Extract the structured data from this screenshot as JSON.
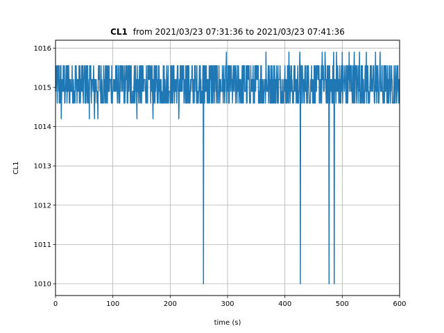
{
  "chart_data": {
    "type": "line",
    "title_bold": "CL1",
    "title_rest": "from 2021/03/23 07:31:36 to 2021/03/23 07:41:36",
    "xlabel": "time (s)",
    "ylabel": "CL1",
    "xlim": [
      0,
      600
    ],
    "ylim": [
      1009.7,
      1016.2
    ],
    "xticks": [
      0,
      100,
      200,
      300,
      400,
      500,
      600
    ],
    "yticks": [
      1010,
      1011,
      1012,
      1013,
      1014,
      1015,
      1016
    ],
    "grid": true,
    "line_color": "#1f77b4",
    "baseline_levels": [
      1014.6,
      1014.9,
      1015.2,
      1015.55
    ],
    "spikes_up": [
      {
        "x": 298,
        "y": 1015.9
      },
      {
        "x": 367,
        "y": 1015.9
      },
      {
        "x": 407,
        "y": 1015.9
      },
      {
        "x": 426,
        "y": 1015.9
      },
      {
        "x": 465,
        "y": 1015.9
      },
      {
        "x": 470,
        "y": 1015.9
      },
      {
        "x": 485,
        "y": 1015.9
      },
      {
        "x": 490,
        "y": 1015.9
      },
      {
        "x": 500,
        "y": 1015.9
      },
      {
        "x": 512,
        "y": 1015.9
      },
      {
        "x": 521,
        "y": 1015.9
      },
      {
        "x": 530,
        "y": 1015.9
      },
      {
        "x": 542,
        "y": 1015.9
      },
      {
        "x": 558,
        "y": 1015.9
      },
      {
        "x": 566,
        "y": 1015.9
      }
    ],
    "spikes_down": [
      {
        "x": 10,
        "y": 1014.2
      },
      {
        "x": 59,
        "y": 1014.2
      },
      {
        "x": 68,
        "y": 1014.2
      },
      {
        "x": 74,
        "y": 1014.2
      },
      {
        "x": 142,
        "y": 1014.2
      },
      {
        "x": 170,
        "y": 1014.2
      },
      {
        "x": 215,
        "y": 1014.2
      },
      {
        "x": 258,
        "y": 1010.0
      },
      {
        "x": 427,
        "y": 1010.0
      },
      {
        "x": 477,
        "y": 1010.0
      },
      {
        "x": 486,
        "y": 1010.0
      }
    ]
  }
}
